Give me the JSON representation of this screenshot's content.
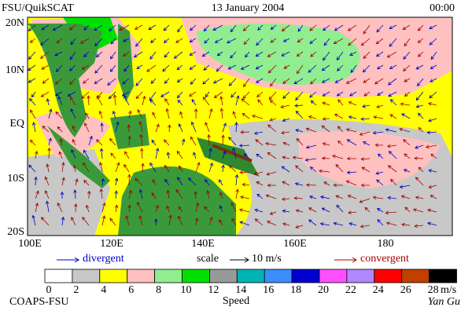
{
  "header": {
    "left": "FSU/QuikSCAT",
    "center": "13 January 2004",
    "right": "00:00"
  },
  "map": {
    "lat_labels": [
      "20N",
      "10N",
      "EQ",
      "10S",
      "20S"
    ],
    "lon_labels": [
      "100E",
      "120E",
      "140E",
      "160E",
      "180"
    ]
  },
  "legend": {
    "divergent": "divergent",
    "scale": "scale",
    "scale_value": "10 m/s",
    "convergent": "convergent"
  },
  "colorbar": {
    "colors": [
      "#ffffff",
      "#c8c8c8",
      "#ffff00",
      "#ffc0c0",
      "#90ee90",
      "#00e000",
      "#999999",
      "#00b4b4",
      "#3c8cff",
      "#0000d0",
      "#ff50ff",
      "#b088ff",
      "#ff0000",
      "#c04000",
      "#000000"
    ],
    "ticks": [
      0,
      2,
      4,
      6,
      8,
      10,
      12,
      14,
      16,
      18,
      20,
      22,
      24,
      26,
      28
    ],
    "unit": "m/s",
    "title": "Speed"
  },
  "footer": {
    "left": "COAPS-FSU",
    "right": "Yan Gu"
  }
}
